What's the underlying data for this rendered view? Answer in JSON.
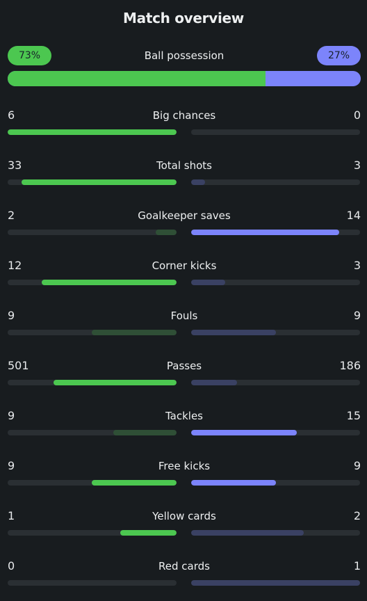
{
  "title": "Match overview",
  "colors": {
    "home": "#4cc750",
    "away": "#7c84fb",
    "home_dim": "#2f4f36",
    "away_dim": "#3a4163",
    "track": "#2a2f33"
  },
  "possession": {
    "label": "Ball possession",
    "home": "73%",
    "away": "27%",
    "home_fraction": 0.73
  },
  "stats": [
    {
      "label": "Big chances",
      "home": "6",
      "away": "0",
      "home_fraction": 1.0,
      "away_fraction": 0.0,
      "home_strong": true,
      "away_strong": false
    },
    {
      "label": "Total shots",
      "home": "33",
      "away": "3",
      "home_fraction": 0.917,
      "away_fraction": 0.083,
      "home_strong": true,
      "away_strong": false
    },
    {
      "label": "Goalkeeper saves",
      "home": "2",
      "away": "14",
      "home_fraction": 0.125,
      "away_fraction": 0.875,
      "home_strong": false,
      "away_strong": true
    },
    {
      "label": "Corner kicks",
      "home": "12",
      "away": "3",
      "home_fraction": 0.8,
      "away_fraction": 0.2,
      "home_strong": true,
      "away_strong": false
    },
    {
      "label": "Fouls",
      "home": "9",
      "away": "9",
      "home_fraction": 0.5,
      "away_fraction": 0.5,
      "home_strong": false,
      "away_strong": false
    },
    {
      "label": "Passes",
      "home": "501",
      "away": "186",
      "home_fraction": 0.729,
      "away_fraction": 0.271,
      "home_strong": true,
      "away_strong": false
    },
    {
      "label": "Tackles",
      "home": "9",
      "away": "15",
      "home_fraction": 0.375,
      "away_fraction": 0.625,
      "home_strong": false,
      "away_strong": true
    },
    {
      "label": "Free kicks",
      "home": "9",
      "away": "9",
      "home_fraction": 0.5,
      "away_fraction": 0.5,
      "home_strong": true,
      "away_strong": true
    },
    {
      "label": "Yellow cards",
      "home": "1",
      "away": "2",
      "home_fraction": 0.333,
      "away_fraction": 0.667,
      "home_strong": true,
      "away_strong": false
    },
    {
      "label": "Red cards",
      "home": "0",
      "away": "1",
      "home_fraction": 0.0,
      "away_fraction": 1.0,
      "home_strong": false,
      "away_strong": false
    }
  ]
}
